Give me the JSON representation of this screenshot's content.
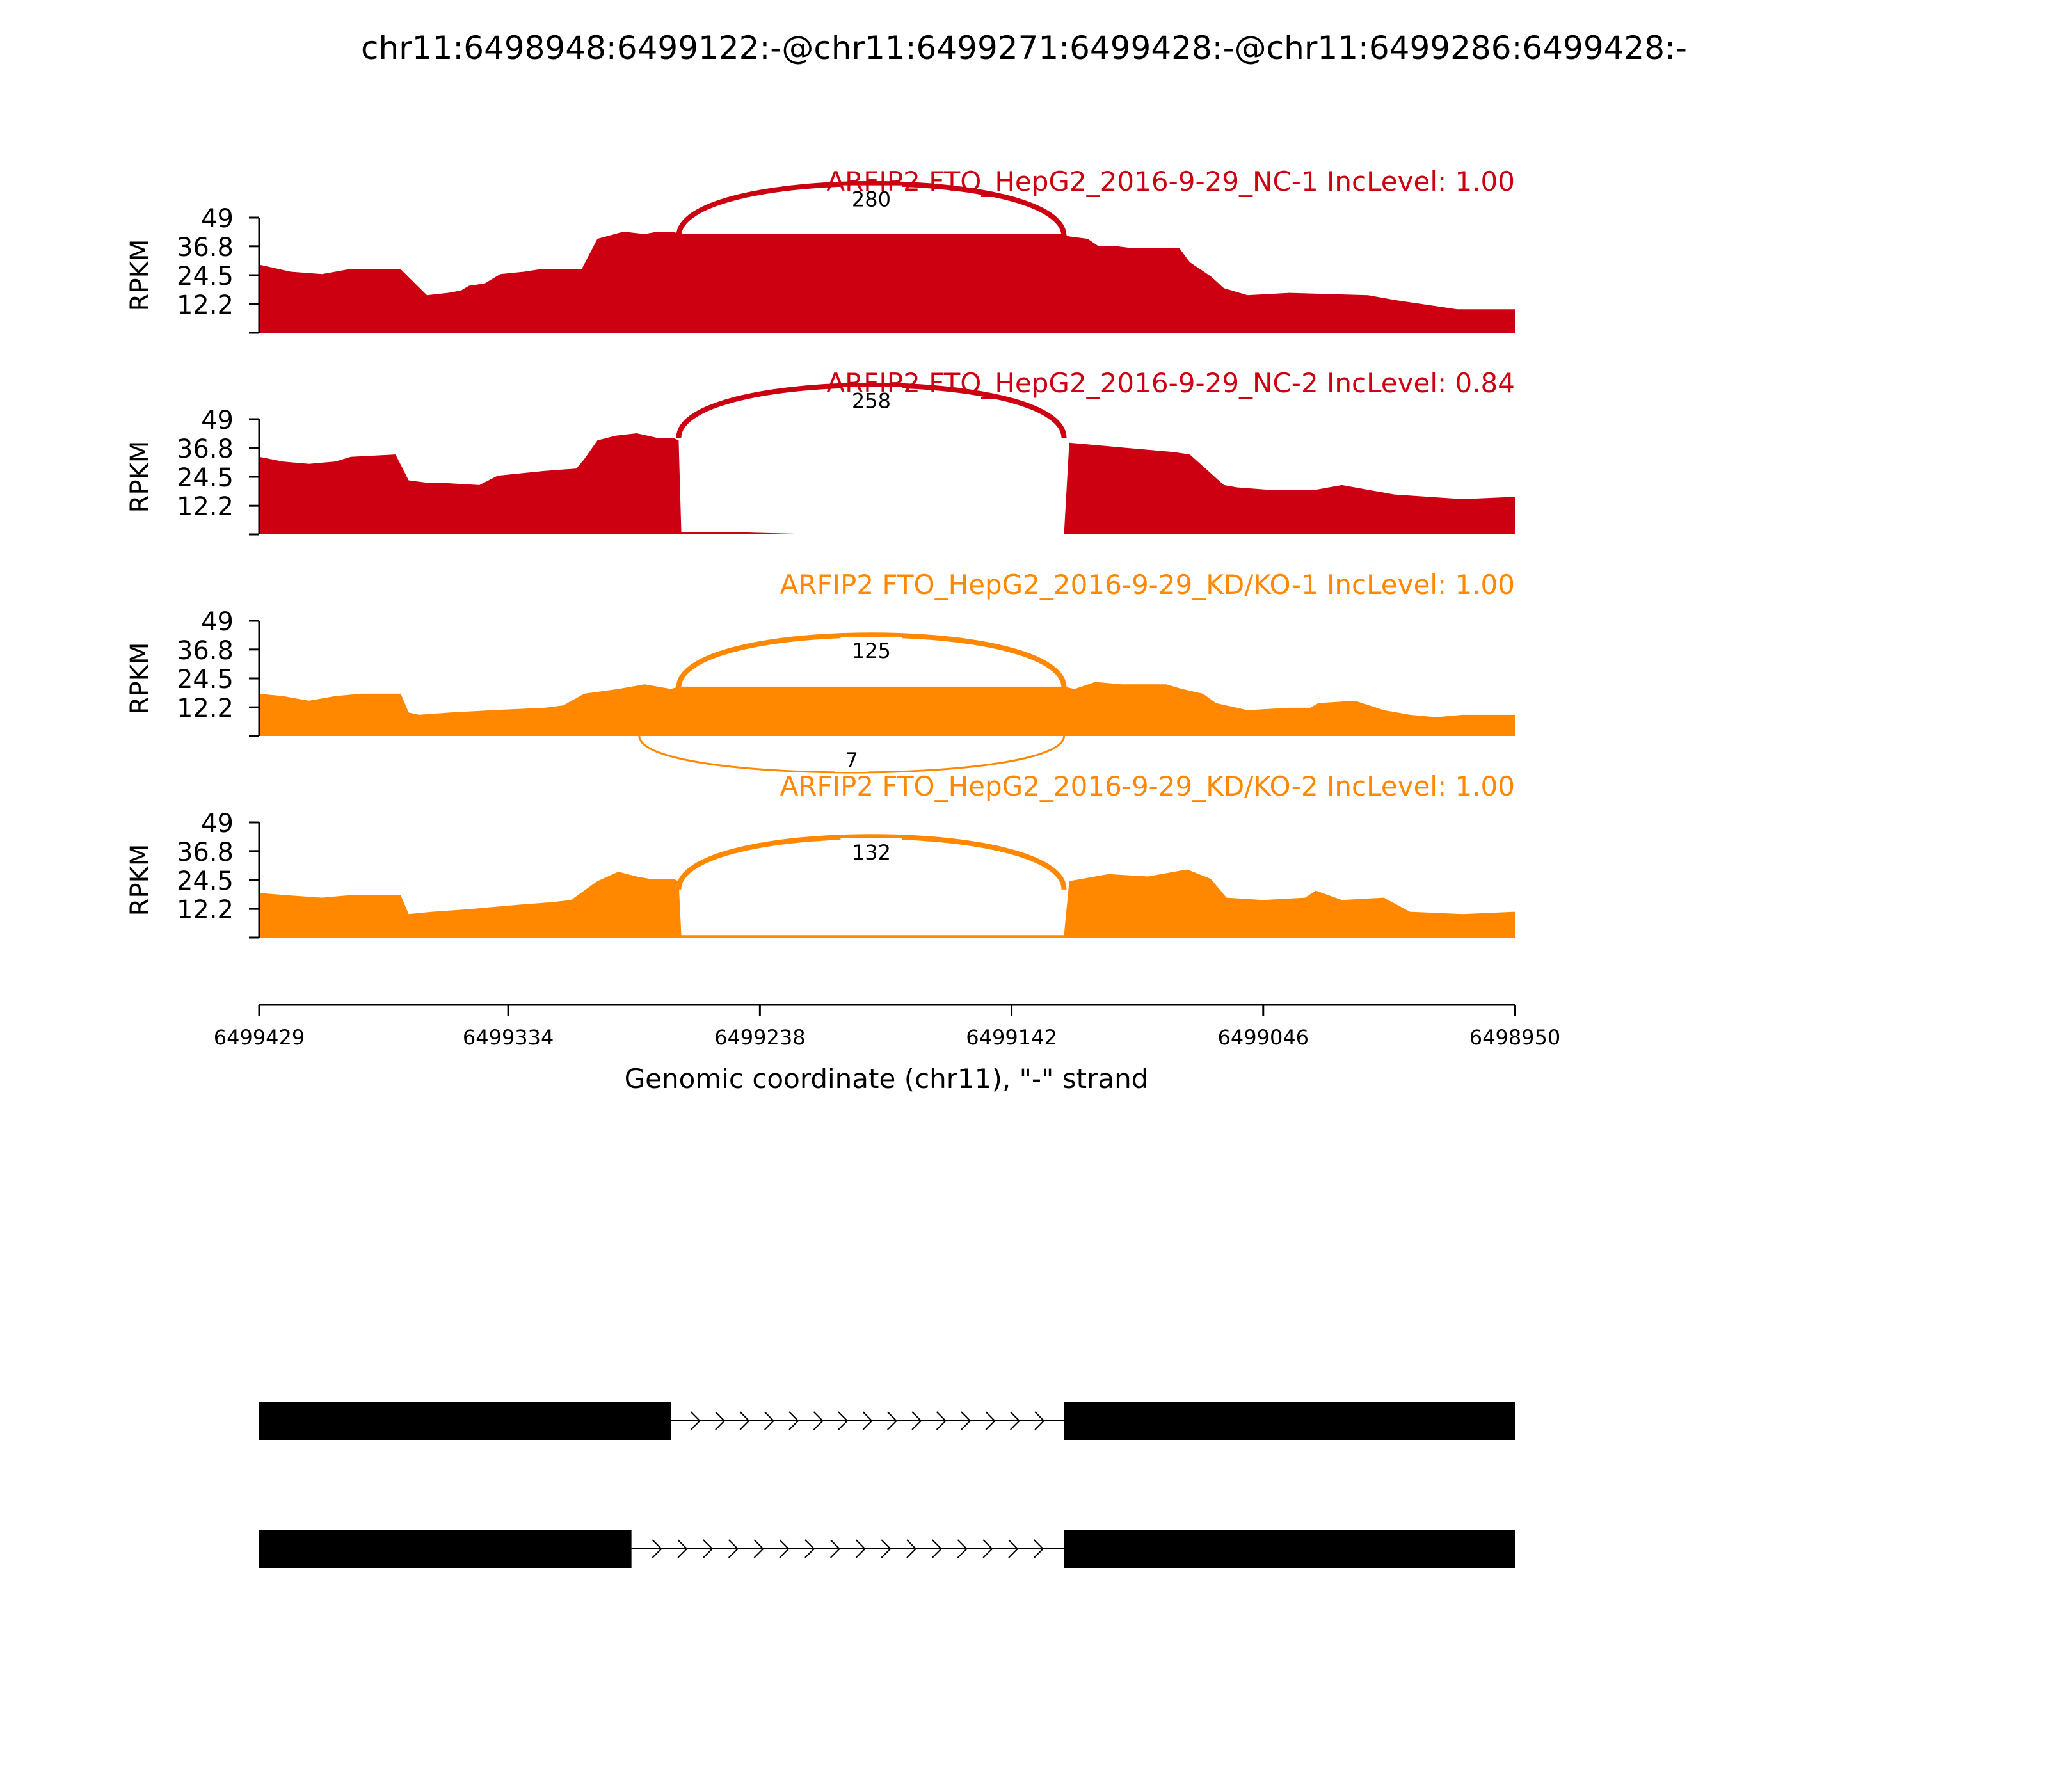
{
  "chart_data": {
    "type": "area",
    "title": "chr11:6498948:6499122:-@chr11:6499271:6499428:-@chr11:6499286:6499428:-",
    "ylabel": "RPKM",
    "xlabel": "Genomic coordinate (chr11), \"-\" strand",
    "ylim": [
      0,
      49
    ],
    "yticks": [
      "12.2",
      "24.5",
      "36.8",
      "49"
    ],
    "yticks_values": [
      0,
      12.2,
      24.5,
      36.8,
      49
    ],
    "x_range": [
      6499429,
      6498950
    ],
    "xticks": [
      "6499429",
      "6499334",
      "6499238",
      "6499142",
      "6499046",
      "6498950"
    ],
    "xticks_values": [
      6499429,
      6499334,
      6499238,
      6499142,
      6499046,
      6498950
    ],
    "tracks": [
      {
        "label": "ARFIP2 FTO_HepG2_2016-9-29_NC-1 IncLevel: 1.00",
        "color": "#cc0011",
        "x": [
          6499429,
          6499425,
          6499417,
          6499405,
          6499395,
          6499375,
          6499365,
          6499357,
          6499352,
          6499349,
          6499343,
          6499337,
          6499328,
          6499322,
          6499306,
          6499300,
          6499290,
          6499282,
          6499277,
          6499271,
          6499269,
          6499122,
          6499120,
          6499113,
          6499109,
          6499103,
          6499096,
          6499078,
          6499074,
          6499066,
          6499061,
          6499052,
          6499036,
          6499006,
          6498996,
          6498972,
          6498950
        ],
        "values": [
          29,
          28,
          26,
          25,
          27,
          27,
          16,
          17,
          18,
          20,
          21,
          25,
          26,
          27,
          27,
          40,
          43,
          42,
          43,
          43,
          42,
          42,
          41,
          40,
          37,
          37,
          36,
          36,
          30,
          24,
          19,
          16,
          17,
          16,
          14,
          10,
          10
        ],
        "junctions": [
          {
            "label": "280",
            "from": 6499269,
            "to": 6499122,
            "side": "above",
            "height": 55,
            "weight": 4
          }
        ]
      },
      {
        "label": "ARFIP2 FTO_HepG2_2016-9-29_NC-2 IncLevel: 0.84",
        "color": "#cc0011",
        "x": [
          6499429,
          6499420,
          6499410,
          6499400,
          6499394,
          6499377,
          6499372,
          6499365,
          6499360,
          6499345,
          6499338,
          6499329,
          6499320,
          6499308,
          6499305,
          6499300,
          6499293,
          6499285,
          6499277,
          6499271,
          6499269,
          6499268,
          6499250,
          6499215,
          6499122,
          6499120,
          6499110,
          6499100,
          6499090,
          6499080,
          6499074,
          6499066,
          6499061,
          6499056,
          6499044,
          6499026,
          6499016,
          6499006,
          6498996,
          6498970,
          6498950
        ],
        "values": [
          33,
          31,
          30,
          31,
          33,
          34,
          23,
          22,
          22,
          21,
          25,
          26,
          27,
          28,
          32,
          40,
          42,
          43,
          41,
          41,
          40,
          1,
          1,
          0,
          0,
          39,
          38,
          37,
          36,
          35,
          34,
          26,
          21,
          20,
          19,
          19,
          21,
          19,
          17,
          15,
          16
        ],
        "junctions": [
          {
            "label": "258",
            "from": 6499269,
            "to": 6499122,
            "side": "above",
            "height": 55,
            "weight": 4
          }
        ]
      },
      {
        "label": "ARFIP2 FTO_HepG2_2016-9-29_KD/KO-1 IncLevel: 1.00",
        "color": "#ff8800",
        "x": [
          6499429,
          6499420,
          6499410,
          6499400,
          6499390,
          6499375,
          6499372,
          6499368,
          6499356,
          6499340,
          6499320,
          6499313,
          6499305,
          6499292,
          6499282,
          6499272,
          6499269,
          6499122,
          6499118,
          6499110,
          6499100,
          6499083,
          6499077,
          6499069,
          6499064,
          6499052,
          6499036,
          6499028,
          6499025,
          6499011,
          6499000,
          6498990,
          6498980,
          6498970,
          6498950
        ],
        "values": [
          18,
          17,
          15,
          17,
          18,
          18,
          10,
          9,
          10,
          11,
          12,
          13,
          18,
          20,
          22,
          20,
          21,
          21,
          20,
          23,
          22,
          22,
          20,
          18,
          14,
          11,
          12,
          12,
          14,
          15,
          11,
          9,
          8,
          9,
          9
        ],
        "junctions": [
          {
            "label": "125",
            "from": 6499269,
            "to": 6499122,
            "side": "above",
            "height": 55,
            "weight": 4
          },
          {
            "label": "7",
            "from": 6499284,
            "to": 6499122,
            "side": "below",
            "height": 38,
            "weight": 1.5
          }
        ]
      },
      {
        "label": "ARFIP2 FTO_HepG2_2016-9-29_KD/KO-2 IncLevel: 1.00",
        "color": "#ff8800",
        "x": [
          6499429,
          6499418,
          6499405,
          6499395,
          6499375,
          6499372,
          6499363,
          6499350,
          6499330,
          6499318,
          6499310,
          6499300,
          6499292,
          6499285,
          6499280,
          6499271,
          6499269,
          6499268,
          6499122,
          6499120,
          6499105,
          6499090,
          6499075,
          6499066,
          6499060,
          6499046,
          6499030,
          6499026,
          6499016,
          6499000,
          6498990,
          6498970,
          6498950
        ],
        "values": [
          19,
          18,
          17,
          18,
          18,
          10,
          11,
          12,
          14,
          15,
          16,
          24,
          28,
          26,
          25,
          25,
          24,
          1,
          1,
          24,
          27,
          26,
          29,
          25,
          17,
          16,
          17,
          20,
          16,
          17,
          11,
          10,
          11
        ],
        "junctions": [
          {
            "label": "132",
            "from": 6499269,
            "to": 6499122,
            "side": "above",
            "height": 55,
            "weight": 4
          }
        ]
      }
    ],
    "transcripts": [
      {
        "exons": [
          [
            6499429,
            6499272
          ],
          [
            6499122,
            6498950
          ]
        ],
        "intron": [
          6499272,
          6499122
        ]
      },
      {
        "exons": [
          [
            6499429,
            6499287
          ],
          [
            6499122,
            6498950
          ]
        ],
        "intron": [
          6499287,
          6499122
        ]
      }
    ]
  }
}
